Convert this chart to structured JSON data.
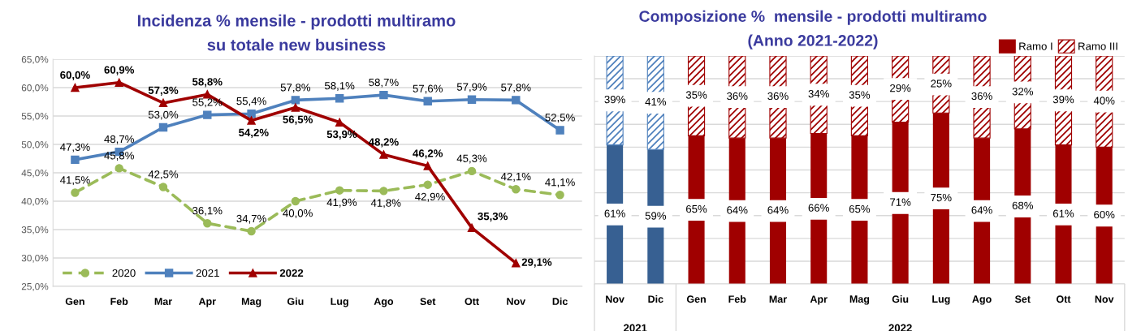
{
  "chart_data": [
    {
      "type": "line",
      "title": "Incidenza % mensile - prodotti multiramo\nsu totale new business",
      "categories": [
        "Gen",
        "Feb",
        "Mar",
        "Apr",
        "Mag",
        "Giu",
        "Lug",
        "Ago",
        "Set",
        "Ott",
        "Nov",
        "Dic"
      ],
      "series": [
        {
          "name": "2020",
          "color": "#9bbb59",
          "marker": "circle",
          "line_style": "dashed",
          "values": [
            41.5,
            45.8,
            42.5,
            36.1,
            34.7,
            40.0,
            41.9,
            41.8,
            42.9,
            45.3,
            42.1,
            41.1
          ],
          "value_labels": [
            "41,5%",
            "45,8%",
            "42,5%",
            "36,1%",
            "34,7%",
            "40,0%",
            "41,9%",
            "41,8%",
            "42,9%",
            "45,3%",
            "42,1%",
            "41,1%"
          ]
        },
        {
          "name": "2021",
          "color": "#4f81bd",
          "marker": "square",
          "line_style": "solid",
          "values": [
            47.3,
            48.7,
            53.0,
            55.2,
            55.4,
            57.8,
            58.1,
            58.7,
            57.6,
            57.9,
            57.8,
            52.5
          ],
          "value_labels": [
            "47,3%",
            "48,7%",
            "53,0%",
            "55,2%",
            "55,4%",
            "57,8%",
            "58,1%",
            "58,7%",
            "57,6%",
            "57,9%",
            "57,8%",
            "52,5%"
          ]
        },
        {
          "name": "2022",
          "color": "#a00000",
          "marker": "triangle",
          "line_style": "solid",
          "values": [
            60.0,
            60.9,
            57.3,
            58.8,
            54.2,
            56.5,
            53.9,
            48.2,
            46.2,
            35.3,
            29.1,
            null
          ],
          "value_labels": [
            "60,0%",
            "60,9%",
            "57,3%",
            "58,8%",
            "54,2%",
            "56,5%",
            "53,9%",
            "48,2%",
            "46,2%",
            "35,3%",
            "29,1%",
            null
          ]
        }
      ],
      "ylim": [
        25,
        65
      ],
      "yticks": [
        {
          "value": 25,
          "label": "25,0%"
        },
        {
          "value": 30,
          "label": "30,0%"
        },
        {
          "value": 35,
          "label": "35,0%"
        },
        {
          "value": 40,
          "label": "40,0%"
        },
        {
          "value": 45,
          "label": "45,0%"
        },
        {
          "value": 50,
          "label": "50,0%"
        },
        {
          "value": 55,
          "label": "55,0%"
        },
        {
          "value": 60,
          "label": "60,0%"
        },
        {
          "value": 65,
          "label": "65,0%"
        }
      ],
      "grid": "y",
      "legend": "bottom left"
    },
    {
      "type": "bar",
      "stacked": true,
      "title": "Composizione %  mensile - prodotti multiramo\n(Anno 2021-2022)",
      "categories": [
        "Nov",
        "Dic",
        "Gen",
        "Feb",
        "Mar",
        "Apr",
        "Mag",
        "Giu",
        "Lug",
        "Ago",
        "Set",
        "Ott",
        "Nov"
      ],
      "series": [
        {
          "name": "Ramo I",
          "colors": [
            "#376092",
            "#376092",
            "#a00000",
            "#a00000",
            "#a00000",
            "#a00000",
            "#a00000",
            "#a00000",
            "#a00000",
            "#a00000",
            "#a00000",
            "#a00000",
            "#a00000"
          ],
          "values": [
            61,
            59,
            65,
            64,
            64,
            66,
            65,
            71,
            75,
            64,
            68,
            61,
            60
          ],
          "value_labels": [
            "61%",
            "59%",
            "65%",
            "64%",
            "64%",
            "66%",
            "65%",
            "71%",
            "75%",
            "64%",
            "68%",
            "61%",
            "60%"
          ]
        },
        {
          "name": "Ramo III",
          "colors": [
            "#4f81bd",
            "#4f81bd",
            "#a00000",
            "#a00000",
            "#a00000",
            "#a00000",
            "#a00000",
            "#a00000",
            "#a00000",
            "#a00000",
            "#a00000",
            "#a00000",
            "#a00000"
          ],
          "values": [
            39,
            41,
            35,
            36,
            36,
            34,
            35,
            29,
            25,
            36,
            32,
            39,
            40
          ],
          "value_labels": [
            "39%",
            "41%",
            "35%",
            "36%",
            "36%",
            "34%",
            "35%",
            "29%",
            "25%",
            "36%",
            "32%",
            "39%",
            "40%"
          ]
        }
      ],
      "ylim": [
        0,
        100
      ],
      "yticks": [
        {
          "value": 0,
          "label": null
        },
        {
          "value": 10,
          "label": null
        },
        {
          "value": 20,
          "label": null
        },
        {
          "value": 30,
          "label": null
        },
        {
          "value": 40,
          "label": null
        },
        {
          "value": 50,
          "label": null
        },
        {
          "value": 60,
          "label": null
        },
        {
          "value": 70,
          "label": null
        },
        {
          "value": 80,
          "label": null
        },
        {
          "value": 90,
          "label": null
        },
        {
          "value": 100,
          "label": null
        }
      ],
      "tick_labels": "x",
      "grid": "y",
      "legend": "top right",
      "annotations": [
        "2021",
        "2022"
      ]
    }
  ]
}
